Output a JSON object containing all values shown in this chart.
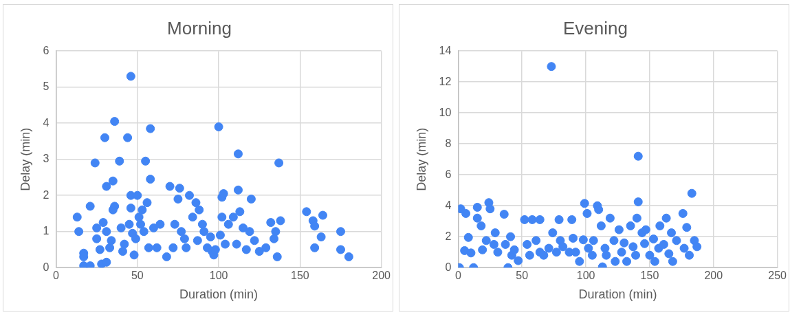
{
  "chart_data": [
    {
      "type": "scatter",
      "title": "Morning",
      "xlabel": "Duration (min)",
      "ylabel": "Delay (min)",
      "color": "#4285f4",
      "marker": "circle",
      "grid": true,
      "xlim": [
        0,
        200
      ],
      "xticks": [
        0,
        50,
        100,
        150,
        200
      ],
      "ylim": [
        0,
        6
      ],
      "yticks": [
        0,
        1,
        2,
        3,
        4,
        5,
        6
      ],
      "x": [
        13,
        14,
        17,
        17,
        17,
        21,
        21,
        24,
        25,
        25,
        27,
        28,
        29,
        30,
        31,
        31,
        31,
        33,
        34,
        35,
        36,
        36,
        35,
        39,
        40,
        41,
        42,
        44,
        45,
        46,
        46,
        46,
        47,
        48,
        49,
        50,
        51,
        52,
        53,
        54,
        55,
        56,
        57,
        58,
        58,
        60,
        62,
        64,
        68,
        70,
        72,
        73,
        75,
        76,
        77,
        79,
        80,
        82,
        84,
        86,
        87,
        88,
        90,
        91,
        93,
        95,
        96,
        97,
        98,
        100,
        101,
        102,
        102,
        103,
        104,
        106,
        109,
        111,
        112,
        112,
        113,
        115,
        117,
        119,
        120,
        122,
        125,
        129,
        132,
        134,
        135,
        136,
        137,
        138,
        154,
        158,
        159,
        159,
        164,
        163,
        175,
        175,
        180
      ],
      "values": [
        1.4,
        1.0,
        0.4,
        0.3,
        0.05,
        0.05,
        1.7,
        2.9,
        1.1,
        0.8,
        0.5,
        0.1,
        1.25,
        3.6,
        2.25,
        1.0,
        0.15,
        0.55,
        0.75,
        2.4,
        4.05,
        1.7,
        1.6,
        2.95,
        1.1,
        0.45,
        0.65,
        3.6,
        1.2,
        5.3,
        2.0,
        1.65,
        0.95,
        0.35,
        0.8,
        2.0,
        1.4,
        1.2,
        1.6,
        1.0,
        2.95,
        1.8,
        0.55,
        3.85,
        2.45,
        1.1,
        0.55,
        1.2,
        0.3,
        2.25,
        0.55,
        1.2,
        1.9,
        2.2,
        1.0,
        0.8,
        0.55,
        2.0,
        1.4,
        1.8,
        0.75,
        1.6,
        1.2,
        1.0,
        0.55,
        0.85,
        0.45,
        0.35,
        0.5,
        3.9,
        0.9,
        1.4,
        1.95,
        2.05,
        0.65,
        1.2,
        1.4,
        0.65,
        3.15,
        2.15,
        1.55,
        1.1,
        0.5,
        1.0,
        1.9,
        0.75,
        0.45,
        0.55,
        1.25,
        0.8,
        1.0,
        0.3,
        2.9,
        1.3,
        1.55,
        1.3,
        1.15,
        0.55,
        1.45,
        0.85,
        1.0,
        0.5,
        0.3
      ]
    },
    {
      "type": "scatter",
      "title": "Evening",
      "xlabel": "Duration (min)",
      "ylabel": "Delay (min)",
      "color": "#4285f4",
      "marker": "circle",
      "grid": true,
      "xlim": [
        0,
        250
      ],
      "xticks": [
        0,
        50,
        100,
        150,
        200,
        250
      ],
      "ylim": [
        0,
        14
      ],
      "yticks": [
        0,
        2,
        4,
        6,
        8,
        10,
        12,
        14
      ],
      "x": [
        1,
        2,
        5,
        6,
        8,
        10,
        12,
        15,
        15,
        18,
        19,
        22,
        24,
        25,
        28,
        29,
        31,
        36,
        37,
        39,
        41,
        42,
        44,
        47,
        52,
        54,
        56,
        58,
        61,
        64,
        64,
        67,
        71,
        73,
        74,
        77,
        79,
        80,
        82,
        87,
        89,
        90,
        92,
        95,
        98,
        99,
        101,
        102,
        105,
        106,
        109,
        110,
        112,
        113,
        115,
        116,
        119,
        122,
        123,
        126,
        128,
        130,
        132,
        135,
        137,
        139,
        140,
        141,
        141,
        144,
        146,
        147,
        150,
        153,
        154,
        157,
        158,
        161,
        163,
        165,
        167,
        168,
        171,
        176,
        177,
        179,
        181,
        183,
        185,
        187
      ],
      "values": [
        0,
        3.8,
        1.1,
        3.5,
        1.95,
        0.95,
        0.0,
        3.9,
        3.2,
        2.7,
        1.15,
        1.75,
        4.2,
        3.8,
        1.5,
        2.25,
        1.0,
        3.45,
        1.5,
        0,
        2.0,
        0.8,
        1.15,
        0.45,
        3.1,
        1.5,
        0.8,
        3.1,
        1.75,
        1.0,
        3.1,
        0.8,
        1.25,
        13.0,
        2.25,
        1.0,
        3.1,
        1.75,
        1.35,
        1.0,
        3.1,
        1.9,
        1.0,
        0.4,
        1.8,
        4.15,
        3.5,
        1.25,
        0.8,
        1.75,
        4.0,
        3.75,
        2.7,
        0.05,
        1.25,
        0.8,
        3.2,
        1.75,
        0.4,
        2.45,
        1.0,
        1.6,
        0.4,
        2.7,
        1.35,
        0.8,
        3.2,
        4.25,
        7.2,
        2.25,
        1.55,
        2.45,
        0.8,
        1.85,
        0.4,
        1.25,
        2.7,
        1.5,
        3.2,
        0.9,
        2.25,
        0.4,
        1.75,
        3.5,
        1.25,
        2.6,
        0.8,
        4.8,
        1.75,
        1.35
      ]
    }
  ]
}
